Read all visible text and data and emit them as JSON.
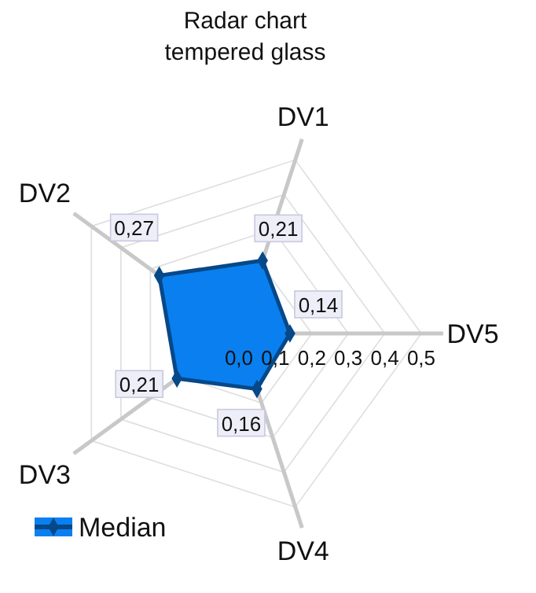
{
  "chart_data": {
    "type": "radar",
    "title": "Radar chart\ntempered glass",
    "categories": [
      "DV1",
      "DV5",
      "DV4",
      "DV3",
      "DV2"
    ],
    "series": [
      {
        "name": "Median",
        "color": "#0a80f0",
        "values": [
          0.21,
          0.14,
          0.16,
          0.21,
          0.27
        ],
        "value_labels": [
          "0,21",
          "0,14",
          "0,16",
          "0,21",
          "0,27"
        ]
      }
    ],
    "ylim": [
      0,
      0.5
    ],
    "yticks": [
      {
        "value": 0,
        "label": "0,0"
      },
      {
        "value": 0.1,
        "label": "0,1"
      },
      {
        "value": 0.2,
        "label": "0,2"
      },
      {
        "value": 0.3,
        "label": "0,3"
      },
      {
        "value": 0.4,
        "label": "0,4"
      },
      {
        "value": 0.5,
        "label": "0,5"
      }
    ],
    "grid": true,
    "marker": "diamond",
    "legend": "bottom left"
  }
}
